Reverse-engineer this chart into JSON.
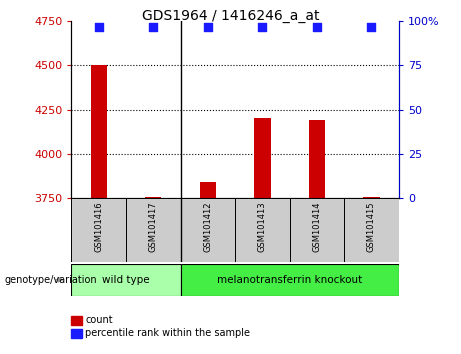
{
  "title": "GDS1964 / 1416246_a_at",
  "samples": [
    "GSM101416",
    "GSM101417",
    "GSM101412",
    "GSM101413",
    "GSM101414",
    "GSM101415"
  ],
  "counts": [
    4500,
    3756,
    3840,
    4205,
    4190,
    3756
  ],
  "percentile_ranks": [
    97,
    97,
    97,
    97,
    97,
    97
  ],
  "ylim_left": [
    3750,
    4750
  ],
  "ylim_right": [
    0,
    100
  ],
  "yticks_left": [
    3750,
    4000,
    4250,
    4500,
    4750
  ],
  "yticks_right": [
    0,
    25,
    50,
    75,
    100
  ],
  "ytick_labels_right": [
    "0",
    "25",
    "50",
    "75",
    "100%"
  ],
  "bar_color": "#cc0000",
  "dot_color": "#1a1aff",
  "groups": [
    {
      "label": "wild type",
      "n_samples": 2,
      "color": "#aaffaa"
    },
    {
      "label": "melanotransferrin knockout",
      "n_samples": 4,
      "color": "#44ee44"
    }
  ],
  "group_label": "genotype/variation",
  "legend_count_label": "count",
  "legend_percentile_label": "percentile rank within the sample",
  "separator_col": 2,
  "bar_width": 0.3,
  "dot_size": 28,
  "gridlines": [
    4000,
    4250,
    4500
  ],
  "gridline_style": "dotted",
  "left_tick_color": "#cc0000",
  "right_tick_color": "#0000cc",
  "label_box_color": "#cccccc",
  "tick_fontsize": 8,
  "sample_fontsize": 6,
  "group_fontsize": 7.5,
  "title_fontsize": 10
}
